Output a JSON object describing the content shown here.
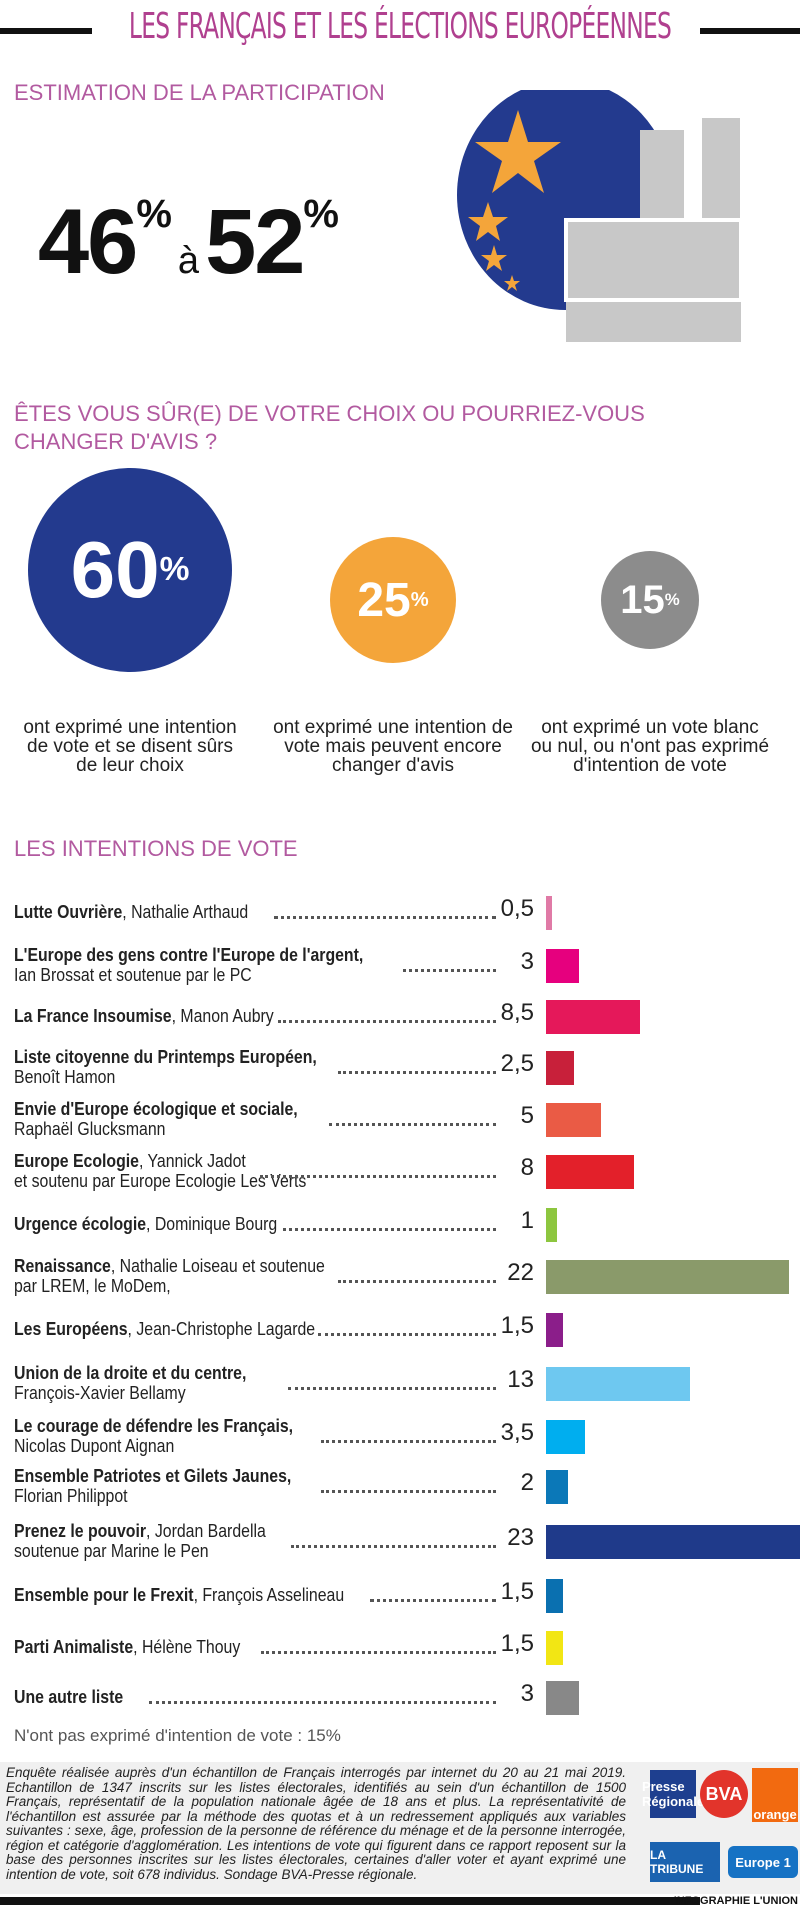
{
  "header": {
    "title": "LES FRANÇAIS ET LES ÉLECTIONS EUROPÉENNES"
  },
  "participation": {
    "heading": "ESTIMATION DE LA PARTICIPATION",
    "low": "46",
    "high": "52",
    "percent": "%",
    "to": "à"
  },
  "certainty": {
    "heading": "ÊTES VOUS SÛR(E) DE VOTRE CHOIX OU POURRIEZ-VOUS CHANGER D'AVIS ?",
    "items": [
      {
        "value": "60",
        "color": "#233a8e",
        "caption": "ont exprimé une intention de vote et se disent sûrs de leur choix"
      },
      {
        "value": "25",
        "color": "#f4a53a",
        "caption": "ont exprimé une intention de vote mais peuvent encore changer d'avis"
      },
      {
        "value": "15",
        "color": "#8c8c8c",
        "caption": "ont exprimé un vote blanc ou nul, ou n'ont pas exprimé d'intention de vote"
      }
    ]
  },
  "chart_data": {
    "type": "bar",
    "title": "LES INTENTIONS DE VOTE",
    "categories": [
      {
        "list": "Lutte Ouvrière",
        "rest": ", Nathalie Arthaud",
        "line2": ""
      },
      {
        "list": "L'Europe des gens contre l'Europe de l'argent,",
        "rest": "",
        "line2": "Ian Brossat et soutenue par le PC"
      },
      {
        "list": "La France Insoumise",
        "rest": ", Manon Aubry",
        "line2": ""
      },
      {
        "list": "Liste citoyenne du Printemps Européen,",
        "rest": "",
        "line2": "Benoît Hamon"
      },
      {
        "list": "Envie d'Europe écologique et sociale,",
        "rest": "",
        "line2": "Raphaël Glucksmann"
      },
      {
        "list": "Europe Ecologie",
        "rest": ", Yannick Jadot",
        "line2": "et soutenu par Europe Ecologie Les Verts"
      },
      {
        "list": "Urgence écologie",
        "rest": ", Dominique Bourg",
        "line2": ""
      },
      {
        "list": "Renaissance",
        "rest": ", Nathalie Loiseau et soutenue",
        "line2": "par LREM, le MoDem,"
      },
      {
        "list": "Les Européens",
        "rest": ", Jean-Christophe Lagarde",
        "line2": ""
      },
      {
        "list": "Union de la droite et du centre,",
        "rest": "",
        "line2": "François-Xavier Bellamy"
      },
      {
        "list": "Le courage de défendre les Français,",
        "rest": "",
        "line2": "Nicolas Dupont Aignan"
      },
      {
        "list": "Ensemble Patriotes et Gilets Jaunes,",
        "rest": "",
        "line2": "Florian Philippot"
      },
      {
        "list": "Prenez le pouvoir",
        "rest": ", Jordan Bardella",
        "line2": "soutenue par Marine le Pen"
      },
      {
        "list": "Ensemble pour le Frexit",
        "rest": ", François Asselineau",
        "line2": ""
      },
      {
        "list": "Parti Animaliste",
        "rest": ", Hélène Thouy",
        "line2": ""
      },
      {
        "list": "Une autre liste",
        "rest": "",
        "line2": ""
      }
    ],
    "values": [
      0.5,
      3,
      8.5,
      2.5,
      5,
      8,
      1,
      22,
      1.5,
      13,
      3.5,
      2,
      23,
      1.5,
      1.5,
      3
    ],
    "labels": [
      "0,5",
      "3",
      "8,5",
      "2,5",
      "5",
      "8",
      "1",
      "22",
      "1,5",
      "13",
      "3,5",
      "2",
      "23",
      "1,5",
      "1,5",
      "3"
    ],
    "colors": [
      "#e07aa6",
      "#e6007e",
      "#e5185a",
      "#c8203a",
      "#ea5b45",
      "#e3202a",
      "#8dc63f",
      "#8a9a6a",
      "#8b1e8a",
      "#6ec8f0",
      "#00aeef",
      "#0b78b8",
      "#1f3a8a",
      "#0a70b0",
      "#f2e614",
      "#888888"
    ],
    "xlim": [
      0,
      23
    ],
    "unit": "%"
  },
  "note": "N'ont pas exprimé d'intention de vote : 15%",
  "footer": {
    "text": "Enquête réalisée auprès d'un échantillon de Français interrogés par internet du 20 au 21 mai 2019. Echantillon de 1347 inscrits sur les listes électorales, identifiés au sein d'un échantillon de 1500 Français, représentatif de la population nationale âgée de 18 ans et plus. La représentativité de l'échantillon est assurée par la méthode des quotas et à un redressement appliqués aux variables suivantes : sexe, âge, profession de la personne de référence du ménage et de la personne interrogée, région et catégorie d'agglomération. Les intentions de vote qui figurent dans ce rapport reposent sur la base des personnes inscrites sur les listes électorales, certaines d'aller voter et ayant exprimé une intention de vote, soit 678 individus. Sondage BVA-Presse régionale.",
    "logos": [
      "Presse Régionale",
      "BVA",
      "orange",
      "LA TRIBUNE",
      "Europe 1"
    ],
    "credit": "INFOGRAPHIE L'UNION"
  }
}
